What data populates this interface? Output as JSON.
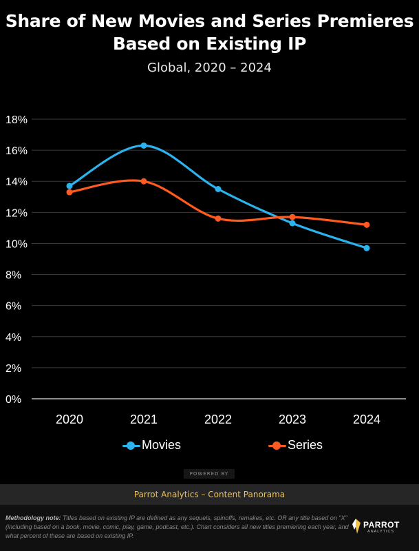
{
  "header": {
    "title_line1": "Share of New Movies and Series Premieres",
    "title_line2": "Based on Existing IP",
    "subtitle": "Global, 2020 – 2024"
  },
  "colors": {
    "movies": "#2bb3f0",
    "series": "#ff5a1f",
    "background": "#000000",
    "grid": "#3a3a3a",
    "accent": "#f0c14b"
  },
  "chart_data": {
    "type": "line",
    "title": "Share of New Movies and Series Premieres Based on Existing IP",
    "subtitle": "Global, 2020 – 2024",
    "x": [
      "2020",
      "2021",
      "2022",
      "2023",
      "2024"
    ],
    "ylim": [
      0,
      18
    ],
    "yticks": [
      0,
      2,
      4,
      6,
      8,
      10,
      12,
      14,
      16,
      18
    ],
    "ytick_labels": [
      "0%",
      "2%",
      "4%",
      "6%",
      "8%",
      "10%",
      "12%",
      "14%",
      "16%",
      "18%"
    ],
    "grid": true,
    "legend_position": "bottom",
    "series": [
      {
        "name": "Movies",
        "values": [
          13.7,
          16.3,
          13.5,
          11.3,
          9.7
        ]
      },
      {
        "name": "Series",
        "values": [
          13.3,
          14.0,
          11.6,
          11.7,
          11.2
        ]
      }
    ]
  },
  "footer": {
    "powered_by": "POWERED BY",
    "source": "Parrot Analytics – Content Panorama",
    "methodology_label": "Methodology note:",
    "methodology_text": "Titles based on existing IP are defined as any sequels, spinoffs, remakes, etc. OR any title based on \"X\" (including based on a book, movie, comic, play, game, podcast, etc.). Chart considers all new titles premiering each year, and what percent of these are based on existing IP.",
    "logo_name": "PARROT",
    "logo_sub": "ANALYTICS"
  }
}
